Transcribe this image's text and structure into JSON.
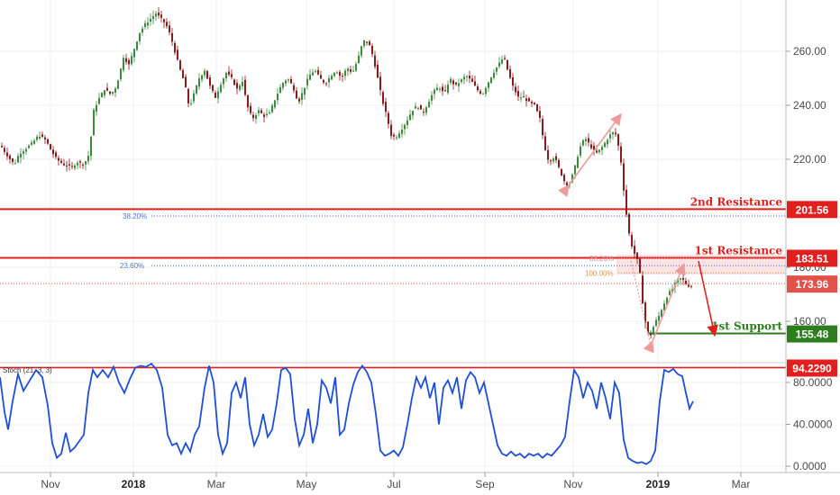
{
  "chart_data": {
    "type": "candlestick",
    "price_axis": {
      "ticks": [
        "260.00",
        "240.00",
        "220.00",
        "180.00",
        "160.00"
      ],
      "ylim": [
        146,
        278
      ]
    },
    "x_axis": {
      "labels": [
        {
          "text": "Nov",
          "bold": false
        },
        {
          "text": "2018",
          "bold": true
        },
        {
          "text": "Mar",
          "bold": false
        },
        {
          "text": "May",
          "bold": false
        },
        {
          "text": "Jul",
          "bold": false
        },
        {
          "text": "Sep",
          "bold": false
        },
        {
          "text": "Nov",
          "bold": false
        },
        {
          "text": "2019",
          "bold": true
        },
        {
          "text": "Mar",
          "bold": false
        }
      ]
    },
    "close_path": [
      [
        0,
        225
      ],
      [
        8,
        221
      ],
      [
        15,
        218
      ],
      [
        20,
        222
      ],
      [
        28,
        224
      ],
      [
        35,
        226
      ],
      [
        42,
        229
      ],
      [
        50,
        227
      ],
      [
        56,
        223
      ],
      [
        62,
        220
      ],
      [
        70,
        218
      ],
      [
        78,
        217
      ],
      [
        85,
        219
      ],
      [
        92,
        218
      ],
      [
        98,
        222
      ],
      [
        103,
        238
      ],
      [
        108,
        242
      ],
      [
        115,
        246
      ],
      [
        122,
        244
      ],
      [
        128,
        247
      ],
      [
        132,
        252
      ],
      [
        136,
        258
      ],
      [
        142,
        255
      ],
      [
        148,
        261
      ],
      [
        154,
        267
      ],
      [
        160,
        270
      ],
      [
        166,
        272
      ],
      [
        172,
        274
      ],
      [
        178,
        272
      ],
      [
        183,
        270
      ],
      [
        188,
        266
      ],
      [
        193,
        260
      ],
      [
        198,
        254
      ],
      [
        204,
        248
      ],
      [
        209,
        239
      ],
      [
        214,
        244
      ],
      [
        220,
        250
      ],
      [
        226,
        253
      ],
      [
        232,
        247
      ],
      [
        238,
        243
      ],
      [
        244,
        248
      ],
      [
        250,
        252
      ],
      [
        256,
        250
      ],
      [
        262,
        246
      ],
      [
        268,
        249
      ],
      [
        273,
        240
      ],
      [
        279,
        235
      ],
      [
        286,
        238
      ],
      [
        292,
        236
      ],
      [
        298,
        237
      ],
      [
        305,
        243
      ],
      [
        312,
        248
      ],
      [
        318,
        250
      ],
      [
        324,
        247
      ],
      [
        330,
        241
      ],
      [
        336,
        246
      ],
      [
        342,
        251
      ],
      [
        348,
        253
      ],
      [
        354,
        250
      ],
      [
        360,
        248
      ],
      [
        366,
        251
      ],
      [
        372,
        253
      ],
      [
        378,
        250
      ],
      [
        384,
        254
      ],
      [
        390,
        252
      ],
      [
        396,
        257
      ],
      [
        402,
        264
      ],
      [
        408,
        263
      ],
      [
        413,
        258
      ],
      [
        418,
        250
      ],
      [
        423,
        242
      ],
      [
        428,
        236
      ],
      [
        433,
        229
      ],
      [
        438,
        228
      ],
      [
        444,
        231
      ],
      [
        450,
        234
      ],
      [
        456,
        238
      ],
      [
        462,
        240
      ],
      [
        468,
        237
      ],
      [
        474,
        241
      ],
      [
        480,
        245
      ],
      [
        486,
        247
      ],
      [
        492,
        244
      ],
      [
        498,
        250
      ],
      [
        504,
        247
      ],
      [
        510,
        249
      ],
      [
        516,
        251
      ],
      [
        522,
        249
      ],
      [
        528,
        246
      ],
      [
        534,
        244
      ],
      [
        540,
        248
      ],
      [
        546,
        252
      ],
      [
        552,
        255
      ],
      [
        558,
        258
      ],
      [
        563,
        252
      ],
      [
        568,
        247
      ],
      [
        574,
        243
      ],
      [
        580,
        243
      ],
      [
        586,
        241
      ],
      [
        592,
        240
      ],
      [
        598,
        235
      ],
      [
        603,
        225
      ],
      [
        608,
        219
      ],
      [
        614,
        221
      ],
      [
        620,
        216
      ],
      [
        625,
        212
      ],
      [
        630,
        210
      ],
      [
        636,
        216
      ],
      [
        642,
        224
      ],
      [
        648,
        228
      ],
      [
        654,
        225
      ],
      [
        660,
        222
      ],
      [
        666,
        224
      ],
      [
        672,
        227
      ],
      [
        678,
        230
      ],
      [
        683,
        229
      ],
      [
        688,
        219
      ],
      [
        693,
        202
      ],
      [
        698,
        190
      ],
      [
        703,
        185
      ],
      [
        708,
        181
      ],
      [
        712,
        167
      ],
      [
        716,
        157
      ],
      [
        720,
        154
      ],
      [
        725,
        159
      ],
      [
        730,
        162
      ],
      [
        735,
        166
      ],
      [
        740,
        170
      ],
      [
        745,
        172
      ],
      [
        750,
        175
      ],
      [
        755,
        176
      ],
      [
        760,
        174
      ],
      [
        764,
        173
      ],
      [
        768,
        173
      ]
    ],
    "levels": [
      {
        "label": "2nd Resistance",
        "tag": "201.56",
        "value": 201.56,
        "color": "#e0201e"
      },
      {
        "label": "1st Resistance",
        "tag": "183.51",
        "value": 183.51,
        "color": "#e0201e"
      },
      {
        "label": "1st Support",
        "tag": "155.48",
        "value": 155.48,
        "color": "#2e7d1e"
      }
    ],
    "current_price": {
      "tag": "173.96",
      "value": 173.96,
      "color": "#e0524a"
    },
    "fib_levels": [
      {
        "label": "38.20%",
        "value": 199.0
      },
      {
        "label": "23.60%",
        "value": 180.6
      },
      {
        "label": "38.20%",
        "value": 183.3
      },
      {
        "label": "100.00%",
        "value": 177.9
      }
    ],
    "stoch": {
      "label": "Stoch (21, 3, 3)",
      "ticks": [
        "80.0000",
        "40.0000",
        "0.0000"
      ],
      "ylim": [
        0,
        100
      ],
      "level_tag": "94.2290",
      "level_value": 94.229,
      "series": [
        [
          0,
          85
        ],
        [
          5,
          52
        ],
        [
          9,
          35
        ],
        [
          14,
          62
        ],
        [
          20,
          88
        ],
        [
          26,
          72
        ],
        [
          33,
          82
        ],
        [
          40,
          92
        ],
        [
          47,
          85
        ],
        [
          53,
          58
        ],
        [
          58,
          22
        ],
        [
          63,
          8
        ],
        [
          68,
          12
        ],
        [
          73,
          32
        ],
        [
          78,
          14
        ],
        [
          83,
          18
        ],
        [
          88,
          24
        ],
        [
          93,
          30
        ],
        [
          98,
          70
        ],
        [
          103,
          92
        ],
        [
          108,
          85
        ],
        [
          114,
          92
        ],
        [
          120,
          85
        ],
        [
          126,
          95
        ],
        [
          132,
          80
        ],
        [
          138,
          70
        ],
        [
          144,
          83
        ],
        [
          150,
          94
        ],
        [
          156,
          96
        ],
        [
          162,
          95
        ],
        [
          168,
          98
        ],
        [
          174,
          92
        ],
        [
          180,
          75
        ],
        [
          186,
          30
        ],
        [
          191,
          20
        ],
        [
          196,
          22
        ],
        [
          201,
          12
        ],
        [
          206,
          22
        ],
        [
          211,
          14
        ],
        [
          216,
          30
        ],
        [
          221,
          38
        ],
        [
          227,
          75
        ],
        [
          232,
          96
        ],
        [
          237,
          80
        ],
        [
          242,
          30
        ],
        [
          247,
          12
        ],
        [
          252,
          22
        ],
        [
          257,
          70
        ],
        [
          262,
          80
        ],
        [
          267,
          65
        ],
        [
          272,
          85
        ],
        [
          277,
          40
        ],
        [
          282,
          20
        ],
        [
          287,
          30
        ],
        [
          292,
          50
        ],
        [
          297,
          28
        ],
        [
          302,
          35
        ],
        [
          307,
          60
        ],
        [
          312,
          92
        ],
        [
          317,
          94
        ],
        [
          322,
          88
        ],
        [
          327,
          45
        ],
        [
          332,
          20
        ],
        [
          337,
          30
        ],
        [
          342,
          55
        ],
        [
          347,
          22
        ],
        [
          352,
          40
        ],
        [
          357,
          82
        ],
        [
          362,
          75
        ],
        [
          367,
          60
        ],
        [
          372,
          85
        ],
        [
          377,
          30
        ],
        [
          382,
          35
        ],
        [
          387,
          60
        ],
        [
          392,
          78
        ],
        [
          397,
          90
        ],
        [
          402,
          96
        ],
        [
          407,
          90
        ],
        [
          412,
          80
        ],
        [
          417,
          50
        ],
        [
          422,
          15
        ],
        [
          427,
          10
        ],
        [
          432,
          12
        ],
        [
          437,
          15
        ],
        [
          442,
          10
        ],
        [
          447,
          18
        ],
        [
          452,
          40
        ],
        [
          457,
          65
        ],
        [
          462,
          85
        ],
        [
          467,
          75
        ],
        [
          472,
          85
        ],
        [
          477,
          65
        ],
        [
          482,
          80
        ],
        [
          487,
          40
        ],
        [
          492,
          75
        ],
        [
          497,
          82
        ],
        [
          502,
          70
        ],
        [
          507,
          85
        ],
        [
          512,
          55
        ],
        [
          517,
          82
        ],
        [
          522,
          90
        ],
        [
          527,
          85
        ],
        [
          532,
          70
        ],
        [
          537,
          80
        ],
        [
          542,
          60
        ],
        [
          547,
          40
        ],
        [
          552,
          20
        ],
        [
          557,
          12
        ],
        [
          562,
          10
        ],
        [
          567,
          14
        ],
        [
          572,
          10
        ],
        [
          577,
          12
        ],
        [
          582,
          8
        ],
        [
          587,
          12
        ],
        [
          592,
          10
        ],
        [
          597,
          12
        ],
        [
          602,
          8
        ],
        [
          607,
          12
        ],
        [
          612,
          10
        ],
        [
          617,
          15
        ],
        [
          622,
          20
        ],
        [
          627,
          28
        ],
        [
          632,
          62
        ],
        [
          637,
          92
        ],
        [
          642,
          85
        ],
        [
          647,
          65
        ],
        [
          652,
          80
        ],
        [
          657,
          72
        ],
        [
          662,
          55
        ],
        [
          667,
          80
        ],
        [
          672,
          65
        ],
        [
          677,
          45
        ],
        [
          682,
          80
        ],
        [
          687,
          70
        ],
        [
          692,
          25
        ],
        [
          697,
          8
        ],
        [
          702,
          5
        ],
        [
          707,
          3
        ],
        [
          712,
          4
        ],
        [
          717,
          2
        ],
        [
          722,
          5
        ],
        [
          727,
          15
        ],
        [
          732,
          62
        ],
        [
          737,
          92
        ],
        [
          742,
          90
        ],
        [
          747,
          93
        ],
        [
          752,
          88
        ],
        [
          757,
          86
        ],
        [
          761,
          70
        ],
        [
          765,
          55
        ],
        [
          769,
          62
        ]
      ]
    }
  }
}
